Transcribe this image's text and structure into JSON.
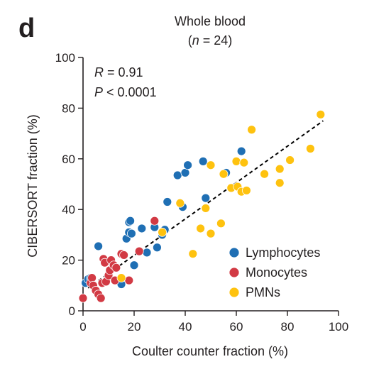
{
  "panel_label": "d",
  "chart_data": {
    "type": "scatter",
    "title": "Whole blood",
    "subtitle_prefix": "(",
    "subtitle_n": "n",
    "subtitle_rest": " = 24)",
    "xlabel": "Coulter counter fraction (%)",
    "ylabel": "CIBERSORT fraction (%)",
    "xlim": [
      0,
      100
    ],
    "ylim": [
      0,
      100
    ],
    "xticks": [
      0,
      20,
      40,
      60,
      80,
      100
    ],
    "yticks": [
      0,
      20,
      40,
      60,
      80,
      100
    ],
    "grid": false,
    "legend_position": "bottom-right",
    "stats": {
      "r_symbol": "R",
      "r_value": " = 0.91",
      "p_symbol": "P",
      "p_value": " < 0.0001"
    },
    "fit_line": {
      "x": [
        2,
        94
      ],
      "y": [
        9,
        75
      ]
    },
    "series": [
      {
        "name": "Lymphocytes",
        "color": "#1f6fb4",
        "points": [
          [
            1,
            11
          ],
          [
            2,
            12.5
          ],
          [
            3,
            13
          ],
          [
            6,
            25.5
          ],
          [
            15,
            10.5
          ],
          [
            17,
            28.5
          ],
          [
            18,
            31
          ],
          [
            18,
            35
          ],
          [
            18.5,
            35.5
          ],
          [
            19,
            30.5
          ],
          [
            20,
            18
          ],
          [
            23,
            32.5
          ],
          [
            25,
            23
          ],
          [
            28,
            33
          ],
          [
            29,
            25
          ],
          [
            31,
            30
          ],
          [
            32,
            32
          ],
          [
            33,
            43
          ],
          [
            37,
            53.5
          ],
          [
            39,
            41
          ],
          [
            40,
            54.5
          ],
          [
            41,
            57.5
          ],
          [
            47,
            59
          ],
          [
            48,
            44.5
          ],
          [
            56,
            54.5
          ],
          [
            62,
            63
          ]
        ]
      },
      {
        "name": "Monocytes",
        "color": "#d23a44",
        "points": [
          [
            0,
            5
          ],
          [
            3,
            11
          ],
          [
            3.5,
            13
          ],
          [
            4,
            10
          ],
          [
            5,
            8
          ],
          [
            6,
            6.5
          ],
          [
            7,
            5
          ],
          [
            7.5,
            11
          ],
          [
            8,
            20.5
          ],
          [
            8.5,
            19
          ],
          [
            9,
            11.5
          ],
          [
            10,
            14
          ],
          [
            10.5,
            16
          ],
          [
            11,
            20
          ],
          [
            12,
            18
          ],
          [
            12.5,
            12
          ],
          [
            13,
            17
          ],
          [
            15,
            22.5
          ],
          [
            16,
            22
          ],
          [
            18,
            12
          ],
          [
            22,
            23.5
          ],
          [
            28,
            35.5
          ]
        ]
      },
      {
        "name": "PMNs",
        "color": "#fec20f",
        "points": [
          [
            15,
            13
          ],
          [
            31,
            31
          ],
          [
            38,
            42.5
          ],
          [
            43,
            22.5
          ],
          [
            46,
            32.5
          ],
          [
            48,
            40.5
          ],
          [
            50,
            30.5
          ],
          [
            50,
            57.5
          ],
          [
            54,
            34.5
          ],
          [
            55,
            54
          ],
          [
            58,
            48.5
          ],
          [
            60,
            59
          ],
          [
            60.5,
            49
          ],
          [
            62,
            47
          ],
          [
            63,
            58.5
          ],
          [
            64,
            47.5
          ],
          [
            66,
            71.5
          ],
          [
            71,
            54
          ],
          [
            77,
            56
          ],
          [
            77,
            50.5
          ],
          [
            81,
            59.5
          ],
          [
            89,
            64
          ],
          [
            93,
            77.5
          ]
        ]
      }
    ]
  }
}
